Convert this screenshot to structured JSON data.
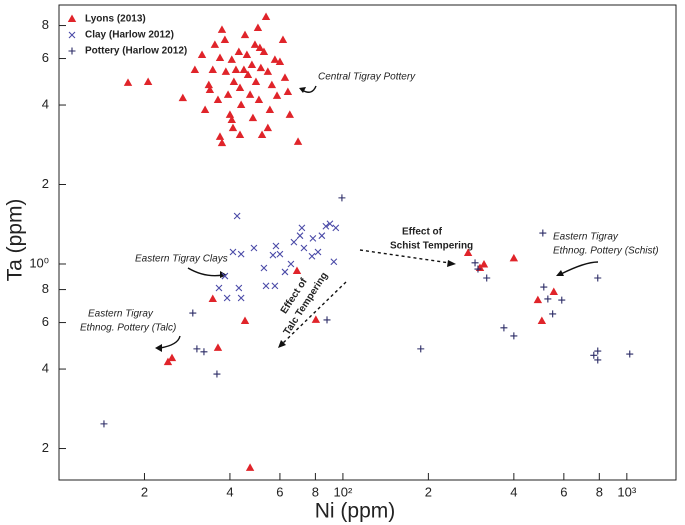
{
  "chart_data": {
    "type": "scatter",
    "log_x": true,
    "log_y": true,
    "x_label": "Ni (ppm)",
    "y_label": "Ta (ppm)",
    "xlim": [
      10,
      1490
    ],
    "ylim": [
      0.152,
      9.57
    ],
    "xticks": [
      {
        "value": 20,
        "label": "2"
      },
      {
        "value": 40,
        "label": "4"
      },
      {
        "value": 60,
        "label": "6"
      },
      {
        "value": 80,
        "label": "8"
      },
      {
        "value": 100,
        "label": "10²"
      },
      {
        "value": 200,
        "label": "2"
      },
      {
        "value": 400,
        "label": "4"
      },
      {
        "value": 600,
        "label": "6"
      },
      {
        "value": 800,
        "label": "8"
      },
      {
        "value": 1000,
        "label": "10³"
      }
    ],
    "yticks": [
      {
        "value": 0.2,
        "label": "2"
      },
      {
        "value": 0.4,
        "label": "4"
      },
      {
        "value": 0.6,
        "label": "6"
      },
      {
        "value": 0.8,
        "label": "8"
      },
      {
        "value": 1,
        "label": "10⁰"
      },
      2,
      4,
      6,
      8
    ],
    "legend": "upper left",
    "annotations": [
      [
        "Central Tigray Pottery"
      ],
      [
        "Eastern Tigray Clays"
      ],
      [
        "Eastern Tigray",
        "Ethnog. Pottery (Talc)"
      ],
      [
        "Effect of",
        "Schist Tempering"
      ],
      [
        "Effect of",
        "Talc Tempering"
      ],
      [
        "Eastern Tigray",
        "Ethnog. Pottery (Schist)"
      ]
    ],
    "series": [
      {
        "name": "Lyons (2013)",
        "color": "#e0242a",
        "marker": "triangle",
        "x": [
          17.5,
          20.6,
          27.3,
          30.1,
          31.9,
          32.7,
          33.7,
          34.8,
          35.4,
          36.3,
          36.9,
          37.5,
          38.4,
          38.7,
          39.4,
          40.0,
          40.6,
          41.0,
          41.3,
          42.0,
          43.0,
          43.4,
          43.8,
          44.8,
          45.2,
          45.9,
          46.3,
          47.1,
          47.8,
          48.2,
          49.0,
          49.4,
          50.2,
          50.6,
          51.0,
          51.4,
          52.7,
          53.6,
          54.4,
          55.3,
          56.2,
          57.6,
          58.6,
          60.0,
          61.5,
          62.5,
          64.0,
          65.0,
          69.5,
          36.9,
          37.5,
          43.4,
          51.9,
          54.4,
          40.6,
          34.0,
          34.8,
          36.3,
          45.2,
          68.9,
          80.3,
          47.1,
          24.2,
          25.0,
          276,
          304,
          314,
          400,
          486,
          502,
          553
        ],
        "values": [
          4.85,
          4.89,
          4.25,
          5.43,
          6.19,
          3.83,
          4.76,
          5.43,
          6.76,
          4.18,
          6.03,
          7.7,
          7.05,
          5.34,
          4.37,
          3.67,
          5.93,
          3.27,
          4.89,
          5.43,
          6.35,
          4.64,
          4.0,
          5.43,
          7.36,
          6.19,
          5.2,
          4.37,
          5.67,
          3.57,
          6.76,
          4.89,
          7.83,
          4.18,
          6.58,
          5.52,
          6.35,
          8.62,
          5.34,
          3.83,
          4.76,
          5.93,
          4.33,
          5.82,
          7.05,
          5.07,
          4.48,
          3.67,
          2.9,
          3.03,
          2.87,
          3.08,
          3.08,
          3.27,
          3.51,
          4.56,
          0.737,
          0.481,
          0.608,
          0.941,
          0.614,
          0.169,
          0.425,
          0.44,
          1.1,
          0.966,
          0.996,
          1.05,
          0.73,
          0.608,
          0.783
        ]
      },
      {
        "name": "Clay (Harlow 2012)",
        "color": "#4b4ba8",
        "marker": "x",
        "x": [
          42.4,
          41.0,
          43.8,
          38.4,
          36.6,
          39.1,
          43.0,
          43.8,
          48.6,
          52.7,
          58.1,
          60.0,
          62.5,
          65.6,
          67.2,
          70.6,
          71.7,
          72.9,
          78.4,
          81.7,
          84.3,
          87.1,
          90.0,
          94.4,
          92.9,
          53.6,
          57.6,
          56.7,
          77.8
        ],
        "values": [
          1.52,
          1.11,
          1.09,
          0.9,
          0.811,
          0.743,
          0.811,
          0.743,
          1.15,
          0.966,
          1.17,
          1.09,
          0.933,
          1.0,
          1.21,
          1.28,
          1.37,
          1.15,
          1.25,
          1.11,
          1.28,
          1.39,
          1.42,
          1.37,
          1.02,
          0.826,
          0.826,
          1.08,
          1.07
        ]
      },
      {
        "name": "Pottery (Harlow 2012)",
        "color": "#2b2b66",
        "marker": "plus",
        "x": [
          14.4,
          29.6,
          30.6,
          32.4,
          36.0,
          99.2,
          188,
          292,
          299,
          321,
          369,
          400,
          506,
          510,
          527,
          548,
          590,
          790,
          765,
          790,
          790,
          1024,
          87.9
        ],
        "values": [
          0.248,
          0.652,
          0.477,
          0.465,
          0.383,
          1.78,
          0.477,
          1.01,
          0.957,
          0.885,
          0.573,
          0.534,
          1.31,
          0.818,
          0.737,
          0.647,
          0.73,
          0.885,
          0.451,
          0.468,
          0.433,
          0.456,
          0.614
        ]
      }
    ]
  }
}
